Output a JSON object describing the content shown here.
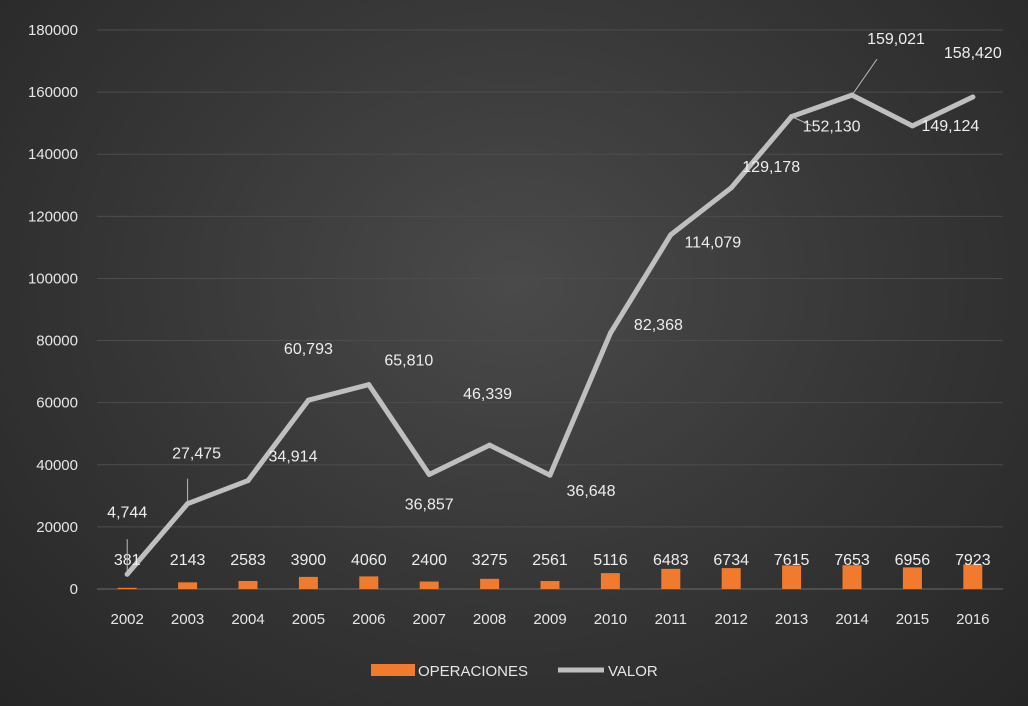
{
  "chart_data": {
    "type": "bar",
    "title": "",
    "xlabel": "",
    "ylabel": "",
    "ylim": [
      0,
      180000
    ],
    "yticks": [
      0,
      20000,
      40000,
      60000,
      80000,
      100000,
      120000,
      140000,
      160000,
      180000
    ],
    "ytick_labels": [
      "0",
      "20000",
      "40000",
      "60000",
      "80000",
      "100000",
      "120000",
      "140000",
      "160000",
      "180000"
    ],
    "categories": [
      "2002",
      "2003",
      "2004",
      "2005",
      "2006",
      "2007",
      "2008",
      "2009",
      "2010",
      "2011",
      "2012",
      "2013",
      "2014",
      "2015",
      "2016"
    ],
    "grid": true,
    "legend_position": "bottom",
    "series": [
      {
        "name": "OPERACIONES",
        "type": "bar",
        "color": "#f07a2e",
        "values": [
          381,
          2143,
          2583,
          3900,
          4060,
          2400,
          3275,
          2561,
          5116,
          6483,
          6734,
          7615,
          7653,
          6956,
          7923
        ],
        "labels": [
          "381",
          "2143",
          "2583",
          "3900",
          "4060",
          "2400",
          "3275",
          "2561",
          "5116",
          "6483",
          "6734",
          "7615",
          "7653",
          "6956",
          "7923"
        ]
      },
      {
        "name": "VALOR",
        "type": "line",
        "color": "#bfbfbf",
        "values": [
          4744,
          27475,
          34914,
          60793,
          65810,
          36857,
          46339,
          36648,
          82368,
          114079,
          129178,
          152130,
          159021,
          149124,
          158420
        ],
        "labels": [
          "4,744",
          "27,475",
          "34,914",
          "60,793",
          "65,810",
          "36,857",
          "46,339",
          "36,648",
          "82,368",
          "114,079",
          "129,178",
          "152,130",
          "159,021",
          "149,124",
          "158,420"
        ]
      }
    ]
  }
}
